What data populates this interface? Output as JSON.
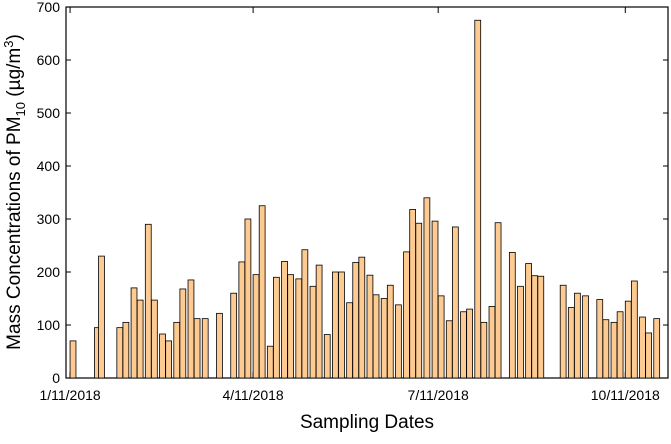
{
  "chart_data": {
    "type": "bar",
    "xlabel": "Sampling Dates",
    "ylabel": {
      "main": "Mass Concentrations of PM",
      "sub": "10",
      "mid": " (µg/m",
      "sup": "3",
      "end": ")"
    },
    "x": [
      "1/11/2018",
      "1/23/2018",
      "1/25/2018",
      "2/3/2018",
      "2/6/2018",
      "2/10/2018",
      "2/13/2018",
      "2/17/2018",
      "2/20/2018",
      "2/24/2018",
      "2/27/2018",
      "3/3/2018",
      "3/6/2018",
      "3/10/2018",
      "3/13/2018",
      "3/17/2018",
      "3/24/2018",
      "3/31/2018",
      "4/4/2018",
      "4/7/2018",
      "4/11/2018",
      "4/14/2018",
      "4/18/2018",
      "4/21/2018",
      "4/25/2018",
      "4/28/2018",
      "5/2/2018",
      "5/5/2018",
      "5/9/2018",
      "5/12/2018",
      "5/16/2018",
      "5/20/2018",
      "5/23/2018",
      "5/27/2018",
      "5/30/2018",
      "6/2/2018",
      "6/6/2018",
      "6/9/2018",
      "6/13/2018",
      "6/16/2018",
      "6/20/2018",
      "6/24/2018",
      "6/27/2018",
      "6/30/2018",
      "7/4/2018",
      "7/8/2018",
      "7/11/2018",
      "7/15/2018",
      "7/18/2018",
      "7/22/2018",
      "7/25/2018",
      "7/29/2018",
      "8/1/2018",
      "8/5/2018",
      "8/8/2018",
      "8/15/2018",
      "8/19/2018",
      "8/23/2018",
      "8/26/2018",
      "8/29/2018",
      "9/9/2018",
      "9/13/2018",
      "9/16/2018",
      "9/20/2018",
      "9/27/2018",
      "9/30/2018",
      "10/4/2018",
      "10/7/2018",
      "10/11/2018",
      "10/14/2018",
      "10/18/2018",
      "10/21/2018",
      "10/25/2018"
    ],
    "values": [
      70,
      95,
      230,
      95,
      105,
      170,
      147,
      290,
      147,
      83,
      70,
      105,
      168,
      185,
      112,
      112,
      122,
      160,
      219,
      300,
      195,
      325,
      60,
      190,
      220,
      195,
      187,
      242,
      173,
      213,
      82,
      200,
      200,
      142,
      218,
      228,
      194,
      157,
      150,
      175,
      138,
      238,
      318,
      292,
      340,
      296,
      155,
      108,
      285,
      125,
      130,
      675,
      105,
      135,
      293,
      237,
      173,
      216,
      193,
      192,
      175,
      133,
      160,
      155,
      148,
      110,
      105,
      125,
      145,
      183,
      115,
      85,
      112
    ],
    "color": "#fdcb92",
    "xlim": [
      "1/9/2018",
      "11/1/2018"
    ],
    "xticks": [
      "1/11/2018",
      "4/11/2018",
      "7/11/2018",
      "10/11/2018"
    ],
    "ylim": [
      0,
      700
    ],
    "yticks": [
      0,
      100,
      200,
      300,
      400,
      500,
      600,
      700
    ],
    "grid": false
  }
}
